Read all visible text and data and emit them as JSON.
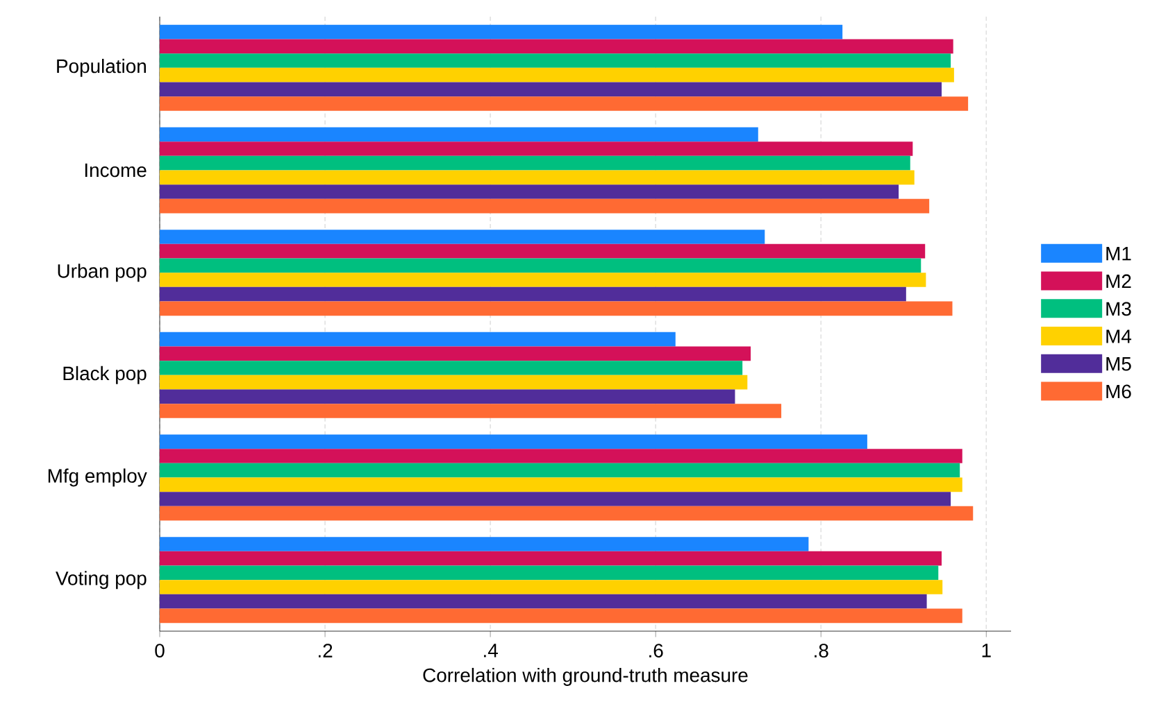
{
  "chart_data": {
    "type": "bar",
    "orientation": "horizontal",
    "xlabel": "Correlation with ground-truth measure",
    "categories": [
      "Population",
      "Income",
      "Urban pop",
      "Black pop",
      "Mfg employ",
      "Voting pop"
    ],
    "series": [
      {
        "name": "M1",
        "color": "#1a85ff",
        "values": [
          0.826,
          0.724,
          0.732,
          0.624,
          0.856,
          0.785
        ]
      },
      {
        "name": "M2",
        "color": "#d41159",
        "values": [
          0.96,
          0.911,
          0.926,
          0.715,
          0.971,
          0.946
        ]
      },
      {
        "name": "M3",
        "color": "#00bf7f",
        "values": [
          0.957,
          0.908,
          0.921,
          0.705,
          0.968,
          0.942
        ]
      },
      {
        "name": "M4",
        "color": "#ffd100",
        "values": [
          0.961,
          0.913,
          0.927,
          0.711,
          0.971,
          0.947
        ]
      },
      {
        "name": "M5",
        "color": "#512d9a",
        "values": [
          0.946,
          0.894,
          0.903,
          0.696,
          0.957,
          0.928
        ]
      },
      {
        "name": "M6",
        "color": "#ff6a33",
        "values": [
          0.978,
          0.931,
          0.959,
          0.752,
          0.984,
          0.971
        ]
      }
    ],
    "xlim": [
      0,
      1.03
    ],
    "xticks": [
      0,
      {
        "value": 0.2,
        "label": ".2"
      },
      {
        "value": 0.4,
        "label": ".4"
      },
      {
        "value": 0.6,
        "label": ".6"
      },
      {
        "value": 0.8,
        "label": ".8"
      },
      1
    ],
    "grid": "x",
    "legend": "right"
  }
}
